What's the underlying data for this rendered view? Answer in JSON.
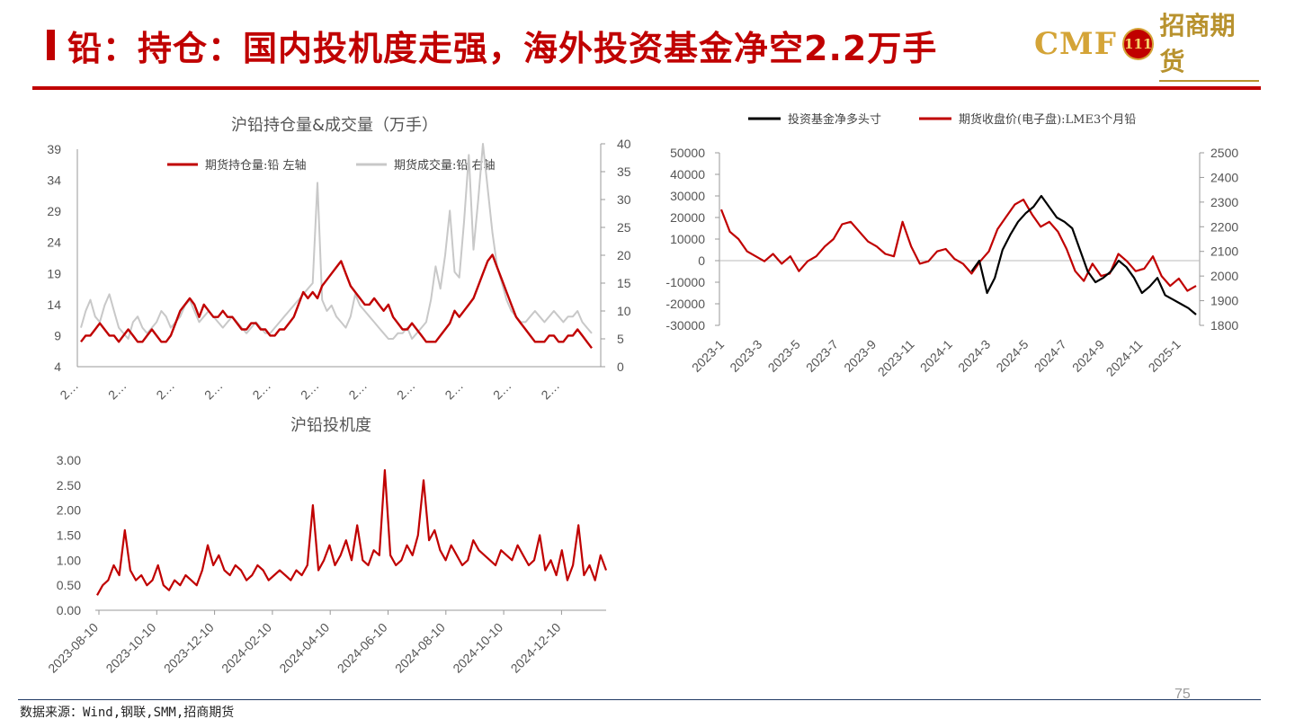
{
  "header": {
    "title": "铅：持仓：国内投机度走强，海外投资基金净空2.2万手",
    "logo_cmf": "CMF",
    "logo_badge": "111",
    "logo_cn": "招商期货"
  },
  "footer": {
    "source": "数据来源：Wind,钢联,SMM,招商期货",
    "page_number": "75"
  },
  "colors": {
    "accent": "#c00000",
    "gray_series": "#c8c8c8",
    "black_series": "#000000",
    "gold": "#d4a437"
  },
  "chart_data": [
    {
      "id": "oi-volume",
      "type": "line",
      "title": "沪铅持仓量&成交量（万手）",
      "x_tick_labels": [
        "2…",
        "2…",
        "2…",
        "2…",
        "2…",
        "2…",
        "2…",
        "2…",
        "2…",
        "2…",
        "2…"
      ],
      "y_left": {
        "ticks": [
          4,
          9,
          14,
          19,
          24,
          29,
          34,
          39
        ],
        "lim": [
          4,
          39
        ]
      },
      "y_right": {
        "ticks": [
          0,
          5,
          10,
          15,
          20,
          25,
          30,
          35,
          40
        ],
        "lim": [
          0,
          40
        ]
      },
      "legend_position": "top",
      "series": [
        {
          "name": "期货持仓量:铅 左轴",
          "axis": "left",
          "color": "#c00000",
          "values": [
            8,
            9,
            9,
            10,
            11,
            10,
            9,
            9,
            8,
            9,
            10,
            9,
            8,
            8,
            9,
            10,
            9,
            8,
            8,
            9,
            11,
            13,
            14,
            15,
            14,
            12,
            14,
            13,
            12,
            12,
            13,
            12,
            12,
            11,
            10,
            10,
            11,
            11,
            10,
            10,
            9,
            9,
            10,
            10,
            11,
            12,
            14,
            16,
            15,
            16,
            15,
            17,
            18,
            19,
            20,
            21,
            19,
            17,
            16,
            15,
            14,
            14,
            15,
            14,
            13,
            14,
            12,
            11,
            10,
            10,
            11,
            10,
            9,
            8,
            8,
            8,
            9,
            10,
            11,
            13,
            12,
            13,
            14,
            15,
            17,
            19,
            21,
            22,
            20,
            18,
            16,
            14,
            12,
            11,
            10,
            9,
            8,
            8,
            8,
            9,
            9,
            8,
            8,
            9,
            9,
            10,
            9,
            8,
            7
          ]
        },
        {
          "name": "期货成交量:铅 右轴",
          "axis": "right",
          "color": "#c8c8c8",
          "values": [
            7,
            10,
            12,
            9,
            8,
            11,
            13,
            10,
            7,
            6,
            5,
            8,
            9,
            7,
            6,
            7,
            8,
            10,
            9,
            7,
            8,
            9,
            11,
            12,
            10,
            8,
            9,
            10,
            9,
            8,
            7,
            8,
            9,
            8,
            7,
            6,
            7,
            8,
            7,
            6,
            6,
            7,
            8,
            9,
            10,
            11,
            12,
            13,
            14,
            15,
            33,
            12,
            10,
            11,
            9,
            8,
            7,
            9,
            13,
            11,
            10,
            9,
            8,
            7,
            6,
            5,
            5,
            6,
            6,
            7,
            5,
            6,
            7,
            8,
            12,
            18,
            14,
            20,
            28,
            17,
            16,
            26,
            38,
            21,
            30,
            40,
            32,
            24,
            18,
            15,
            12,
            10,
            9,
            8,
            8,
            9,
            10,
            9,
            8,
            9,
            10,
            9,
            8,
            9,
            9,
            10,
            8,
            7,
            6
          ]
        }
      ]
    },
    {
      "id": "fund-position",
      "type": "line",
      "title": "",
      "x_tick_labels": [
        "2023-1",
        "2023-3",
        "2023-5",
        "2023-7",
        "2023-9",
        "2023-11",
        "2024-1",
        "2024-3",
        "2024-5",
        "2024-7",
        "2024-9",
        "2024-11",
        "2025-1"
      ],
      "y_left": {
        "ticks": [
          -30000,
          -20000,
          -10000,
          0,
          10000,
          20000,
          30000,
          40000,
          50000
        ],
        "lim": [
          -30000,
          50000
        ]
      },
      "y_right": {
        "ticks": [
          1800,
          1900,
          2000,
          2100,
          2200,
          2300,
          2400,
          2500
        ],
        "lim": [
          1800,
          2500
        ]
      },
      "legend_position": "top",
      "series": [
        {
          "name": "投资基金净多头寸",
          "axis": "left",
          "color": "#000000",
          "start_index": 29,
          "values": [
            -5000,
            0,
            -15000,
            -8000,
            5000,
            12000,
            18000,
            22000,
            25000,
            30000,
            25000,
            20000,
            18000,
            15000,
            5000,
            -5000,
            -10000,
            -8000,
            -5000,
            0,
            -3000,
            -8000,
            -15000,
            -12000,
            -8000,
            -16000,
            -18000,
            -20000,
            -22000,
            -25000
          ]
        },
        {
          "name": "期货收盘价(电子盘):LME3个月铅",
          "axis": "right",
          "color": "#c00000",
          "start_index": 0,
          "values": [
            2270,
            2180,
            2150,
            2100,
            2080,
            2060,
            2090,
            2050,
            2080,
            2020,
            2060,
            2080,
            2120,
            2150,
            2210,
            2220,
            2180,
            2140,
            2120,
            2090,
            2080,
            2220,
            2120,
            2050,
            2060,
            2100,
            2110,
            2070,
            2050,
            2010,
            2060,
            2100,
            2190,
            2240,
            2290,
            2310,
            2250,
            2200,
            2220,
            2180,
            2110,
            2020,
            1980,
            2050,
            2000,
            2010,
            2090,
            2060,
            2020,
            2030,
            2080,
            2000,
            1960,
            1990,
            1940,
            1960
          ]
        }
      ]
    },
    {
      "id": "speculation",
      "type": "line",
      "title": "沪铅投机度",
      "x_tick_labels": [
        "2023-08-10",
        "2023-10-10",
        "2023-12-10",
        "2024-02-10",
        "2024-04-10",
        "2024-06-10",
        "2024-08-10",
        "2024-10-10",
        "2024-12-10"
      ],
      "y_left": {
        "ticks": [
          "0.00",
          "0.50",
          "1.00",
          "1.50",
          "2.00",
          "2.50",
          "3.00"
        ],
        "lim": [
          0,
          3
        ]
      },
      "series": [
        {
          "name": "",
          "color": "#c00000",
          "values": [
            0.3,
            0.5,
            0.6,
            0.9,
            0.7,
            1.6,
            0.8,
            0.6,
            0.7,
            0.5,
            0.6,
            0.9,
            0.5,
            0.4,
            0.6,
            0.5,
            0.7,
            0.6,
            0.5,
            0.8,
            1.3,
            0.9,
            1.1,
            0.8,
            0.7,
            0.9,
            0.8,
            0.6,
            0.7,
            0.9,
            0.8,
            0.6,
            0.7,
            0.8,
            0.7,
            0.6,
            0.8,
            0.7,
            0.9,
            2.1,
            0.8,
            1.0,
            1.3,
            0.9,
            1.1,
            1.4,
            1.0,
            1.7,
            1.0,
            0.9,
            1.2,
            1.1,
            2.8,
            1.1,
            0.9,
            1.0,
            1.3,
            1.1,
            1.5,
            2.6,
            1.4,
            1.6,
            1.2,
            1.0,
            1.3,
            1.1,
            0.9,
            1.0,
            1.4,
            1.2,
            1.1,
            1.0,
            0.9,
            1.2,
            1.1,
            1.0,
            1.3,
            1.1,
            0.9,
            1.0,
            1.5,
            0.8,
            1.0,
            0.7,
            1.2,
            0.6,
            0.9,
            1.7,
            0.7,
            0.9,
            0.6,
            1.1,
            0.8
          ]
        }
      ]
    }
  ]
}
